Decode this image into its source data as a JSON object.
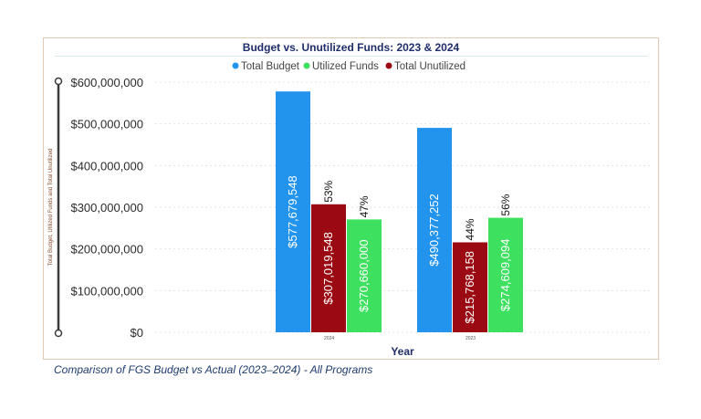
{
  "chart_data": {
    "type": "bar",
    "title": "Budget vs. Unutilized Funds: 2023 & 2024",
    "xlabel": "Year",
    "ylabel": "Total Budget, Utilized Funds and Total Unutilized",
    "ylim": [
      0,
      600000000
    ],
    "yticks": [
      "$0",
      "$100,000,000",
      "$200,000,000",
      "$300,000,000",
      "$400,000,000",
      "$500,000,000",
      "$600,000,000"
    ],
    "ytick_values": [
      0,
      100000000,
      200000000,
      300000000,
      400000000,
      500000000,
      600000000
    ],
    "categories": [
      "2024",
      "2023"
    ],
    "legend_position": "top",
    "series": [
      {
        "name": "Total Budget",
        "color": "#2394ee",
        "values": [
          577679548,
          490377252
        ],
        "labels": [
          "$577,679,548",
          "$490,377,252"
        ],
        "pct": [
          "",
          ""
        ]
      },
      {
        "name": "Total Unutilized",
        "color": "#9b0a13",
        "values": [
          307019548,
          215768158
        ],
        "labels": [
          "$307,019,548",
          "$215,768,158"
        ],
        "pct": [
          "53%",
          "44%"
        ]
      },
      {
        "name": "Utilized Funds",
        "color": "#3ee060",
        "values": [
          270660000,
          274609094
        ],
        "labels": [
          "$270,660,000",
          "$274,609,094"
        ],
        "pct": [
          "47%",
          "56%"
        ]
      }
    ],
    "legend": [
      {
        "name": "Total Budget",
        "color": "#2394ee"
      },
      {
        "name": "Utilized Funds",
        "color": "#3ee060"
      },
      {
        "name": "Total Unutilized",
        "color": "#9b0a13"
      }
    ]
  },
  "caption": "Comparison of FGS Budget vs Actual (2023–2024) - All Programs"
}
